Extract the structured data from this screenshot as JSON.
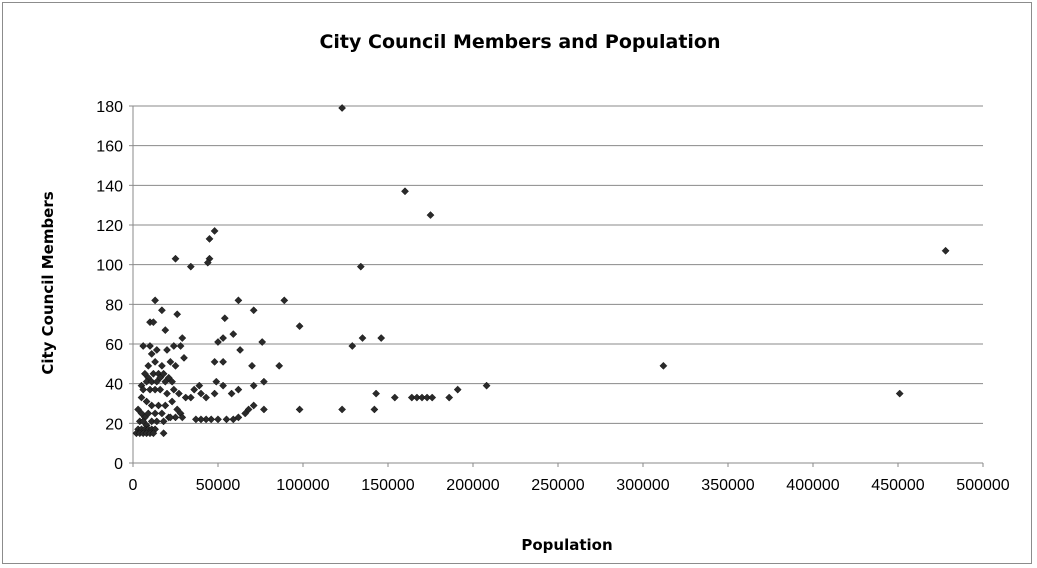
{
  "chart_data": {
    "type": "scatter",
    "title": "City Council Members and Population",
    "xlabel": "Population",
    "ylabel": "City Council Members",
    "xlim": [
      0,
      500000
    ],
    "ylim": [
      0,
      180
    ],
    "x_ticks": [
      "0",
      "50000",
      "100000",
      "150000",
      "200000",
      "250000",
      "300000",
      "350000",
      "400000",
      "450000",
      "500000"
    ],
    "y_ticks": [
      "0",
      "20",
      "40",
      "60",
      "80",
      "100",
      "120",
      "140",
      "160",
      "180"
    ],
    "grid": "horizontal",
    "legend": "none",
    "marker": "diamond",
    "marker_color": "#2a2a2a",
    "points": [
      [
        123000,
        179
      ],
      [
        160000,
        137
      ],
      [
        175000,
        125
      ],
      [
        478000,
        107
      ],
      [
        134000,
        99
      ],
      [
        48000,
        117
      ],
      [
        45000,
        113
      ],
      [
        45000,
        103
      ],
      [
        44000,
        101
      ],
      [
        34000,
        99
      ],
      [
        25000,
        103
      ],
      [
        89000,
        82
      ],
      [
        62000,
        82
      ],
      [
        13000,
        82
      ],
      [
        71000,
        77
      ],
      [
        17000,
        77
      ],
      [
        26000,
        75
      ],
      [
        54000,
        73
      ],
      [
        10000,
        71
      ],
      [
        12000,
        71
      ],
      [
        98000,
        69
      ],
      [
        19000,
        67
      ],
      [
        59000,
        65
      ],
      [
        135000,
        63
      ],
      [
        146000,
        63
      ],
      [
        53000,
        63
      ],
      [
        50000,
        61
      ],
      [
        29000,
        63
      ],
      [
        76000,
        61
      ],
      [
        129000,
        59
      ],
      [
        63000,
        57
      ],
      [
        6000,
        59
      ],
      [
        10000,
        59
      ],
      [
        24000,
        59
      ],
      [
        28000,
        59
      ],
      [
        14000,
        57
      ],
      [
        20000,
        57
      ],
      [
        11000,
        55
      ],
      [
        312000,
        49
      ],
      [
        86000,
        49
      ],
      [
        70000,
        49
      ],
      [
        48000,
        51
      ],
      [
        53000,
        51
      ],
      [
        22000,
        51
      ],
      [
        30000,
        53
      ],
      [
        17000,
        49
      ],
      [
        25000,
        49
      ],
      [
        9000,
        49
      ],
      [
        13000,
        51
      ],
      [
        7000,
        45
      ],
      [
        9000,
        43
      ],
      [
        12000,
        45
      ],
      [
        15000,
        45
      ],
      [
        18000,
        45
      ],
      [
        21000,
        43
      ],
      [
        16000,
        43
      ],
      [
        8000,
        41
      ],
      [
        11000,
        41
      ],
      [
        14000,
        41
      ],
      [
        19000,
        41
      ],
      [
        23000,
        41
      ],
      [
        49000,
        41
      ],
      [
        53000,
        39
      ],
      [
        39000,
        39
      ],
      [
        71000,
        39
      ],
      [
        77000,
        41
      ],
      [
        208000,
        39
      ],
      [
        191000,
        37
      ],
      [
        62000,
        37
      ],
      [
        58000,
        35
      ],
      [
        48000,
        35
      ],
      [
        43000,
        33
      ],
      [
        36000,
        37
      ],
      [
        40000,
        35
      ],
      [
        5000,
        39
      ],
      [
        6000,
        37
      ],
      [
        10000,
        37
      ],
      [
        13000,
        37
      ],
      [
        16000,
        37
      ],
      [
        20000,
        35
      ],
      [
        24000,
        37
      ],
      [
        27000,
        35
      ],
      [
        31000,
        33
      ],
      [
        34000,
        33
      ],
      [
        154000,
        33
      ],
      [
        164000,
        33
      ],
      [
        167000,
        33
      ],
      [
        170000,
        33
      ],
      [
        173000,
        33
      ],
      [
        176000,
        33
      ],
      [
        186000,
        33
      ],
      [
        143000,
        35
      ],
      [
        451000,
        35
      ],
      [
        123000,
        27
      ],
      [
        142000,
        27
      ],
      [
        98000,
        27
      ],
      [
        77000,
        27
      ],
      [
        71000,
        29
      ],
      [
        68000,
        27
      ],
      [
        66000,
        25
      ],
      [
        62000,
        23
      ],
      [
        59000,
        22
      ],
      [
        55000,
        22
      ],
      [
        50000,
        22
      ],
      [
        46000,
        22
      ],
      [
        43000,
        22
      ],
      [
        40000,
        22
      ],
      [
        37000,
        22
      ],
      [
        5000,
        33
      ],
      [
        8000,
        31
      ],
      [
        11000,
        29
      ],
      [
        15000,
        29
      ],
      [
        19000,
        29
      ],
      [
        23000,
        31
      ],
      [
        26000,
        27
      ],
      [
        28000,
        25
      ],
      [
        3000,
        27
      ],
      [
        5000,
        25
      ],
      [
        7000,
        23
      ],
      [
        9000,
        25
      ],
      [
        13000,
        25
      ],
      [
        17000,
        25
      ],
      [
        21000,
        23
      ],
      [
        25000,
        23
      ],
      [
        29000,
        23
      ],
      [
        4000,
        21
      ],
      [
        6000,
        21
      ],
      [
        8000,
        19
      ],
      [
        11000,
        21
      ],
      [
        14000,
        21
      ],
      [
        18000,
        21
      ],
      [
        22000,
        23
      ],
      [
        3000,
        17
      ],
      [
        5000,
        17
      ],
      [
        7000,
        17
      ],
      [
        9000,
        17
      ],
      [
        11000,
        17
      ],
      [
        13000,
        17
      ],
      [
        18000,
        15
      ],
      [
        2000,
        15
      ],
      [
        4000,
        15
      ],
      [
        6000,
        15
      ],
      [
        8000,
        15
      ],
      [
        10000,
        15
      ],
      [
        12000,
        15
      ]
    ]
  }
}
